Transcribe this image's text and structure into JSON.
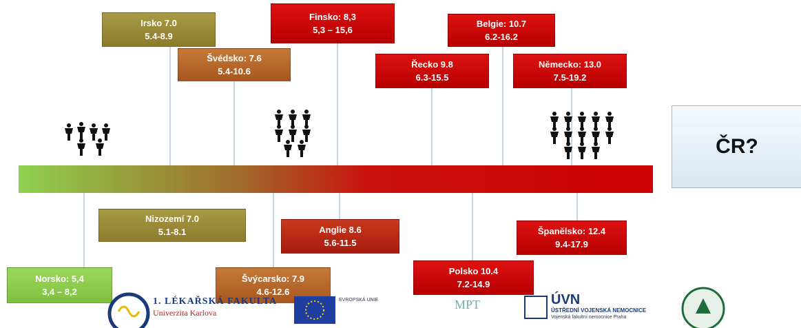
{
  "boxes": [
    {
      "title": "Irsko 7.0",
      "range": "5.4-8.9"
    },
    {
      "title": "Švédsko: 7.6",
      "range": "5.4-10.6"
    },
    {
      "title": "Finsko: 8,3",
      "range": "5,3 – 15,6"
    },
    {
      "title": "Belgie: 10.7",
      "range": "6.2-16.2"
    },
    {
      "title": "Řecko 9.8",
      "range": "6.3-15.5"
    },
    {
      "title": "Německo: 13.0",
      "range": "7.5-19.2"
    },
    {
      "title": "Nizozemí 7.0",
      "range": "5.1-8.1"
    },
    {
      "title": "Anglie 8.6",
      "range": "5.6-11.5"
    },
    {
      "title": "Španělsko: 12.4",
      "range": "9.4-17.9"
    },
    {
      "title": "Norsko: 5,4",
      "range": "3,4 – 8,2"
    },
    {
      "title": "Švýcarsko: 7.9",
      "range": "4.6-12.6"
    },
    {
      "title": "Polsko 10.4",
      "range": "7.2-14.9"
    }
  ],
  "question": "ČR?",
  "logos": {
    "faculty": "1. LÉKAŘSKÁ FAKULTA",
    "university": "Univerzita Karlova",
    "eu": "EVROPSKÁ UNIE",
    "uvn": "ÚVN",
    "uvn_name": "ÚSTŘEDNÍ VOJENSKÁ NEMOCNICE",
    "uvn_sub": "Vojenská fakultní nemocnice Praha"
  }
}
